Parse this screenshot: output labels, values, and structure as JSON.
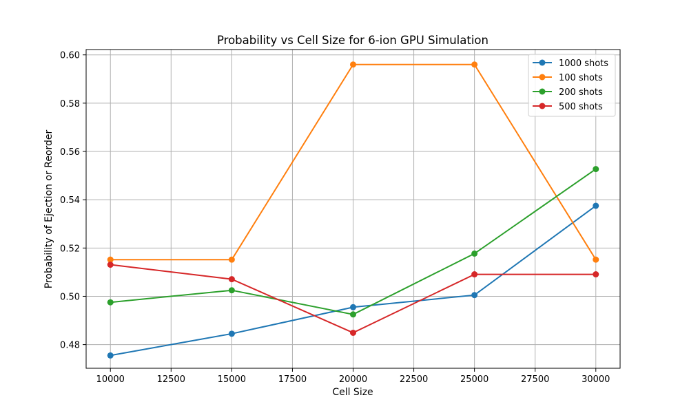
{
  "chart_data": {
    "type": "line",
    "title": "Probability vs Cell Size for 6-ion GPU Simulation",
    "xlabel": "Cell Size",
    "ylabel": "Probability of Ejection or Reorder",
    "xlim": [
      9000,
      31000
    ],
    "ylim": [
      0.4702,
      0.6022
    ],
    "xticks": [
      10000,
      12500,
      15000,
      17500,
      20000,
      22500,
      25000,
      27500,
      30000
    ],
    "yticks": [
      0.48,
      0.5,
      0.52,
      0.54,
      0.56,
      0.58,
      0.6
    ],
    "ytick_labels": [
      "0.48",
      "0.50",
      "0.52",
      "0.54",
      "0.56",
      "0.58",
      "0.60"
    ],
    "grid": true,
    "legend_position": "top-right",
    "x": [
      10000,
      15000,
      20000,
      25000,
      30000
    ],
    "series": [
      {
        "name": "1000 shots",
        "color": "#1f77b4",
        "values": [
          0.4755,
          0.4845,
          0.4955,
          0.5005,
          0.5375
        ]
      },
      {
        "name": "100 shots",
        "color": "#ff7f0e",
        "values": [
          0.5152,
          0.5152,
          0.596,
          0.596,
          0.5152
        ]
      },
      {
        "name": "200 shots",
        "color": "#2ca02c",
        "values": [
          0.4975,
          0.5025,
          0.4925,
          0.5177,
          0.5527
        ]
      },
      {
        "name": "500 shots",
        "color": "#d62728",
        "values": [
          0.5131,
          0.5071,
          0.4849,
          0.5091,
          0.5091
        ]
      }
    ]
  }
}
